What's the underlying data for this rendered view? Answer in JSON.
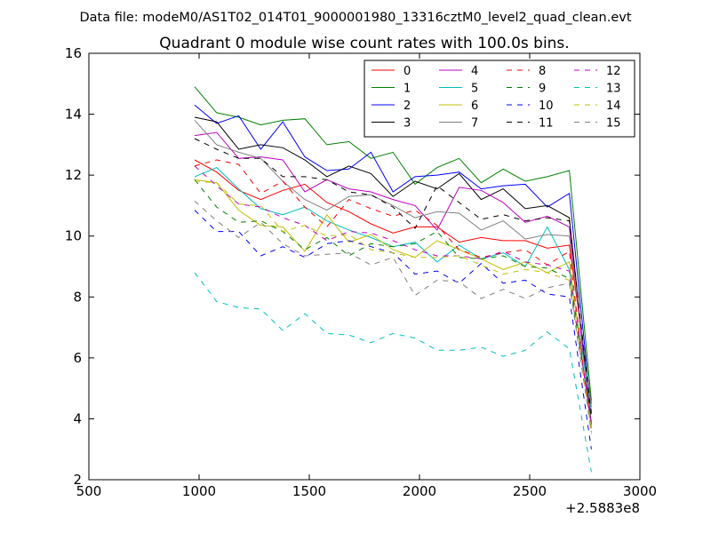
{
  "figure": {
    "suptitle": "Data file: modeM0/AS1T02_014T01_9000001980_13316cztM0_level2_quad_clean.evt"
  },
  "chart_data": {
    "type": "line",
    "title": "Quadrant 0 module wise count rates with 100.0s bins.",
    "xlabel": "",
    "ylabel": "",
    "xlim": [
      500,
      3000
    ],
    "ylim": [
      2,
      16
    ],
    "x_offset_label": "+2.5883e8",
    "xticks": [
      "500",
      "1000",
      "1500",
      "2000",
      "2500",
      "3000"
    ],
    "yticks": [
      "2",
      "4",
      "6",
      "8",
      "10",
      "12",
      "14",
      "16"
    ],
    "grid": false,
    "legend_position": "top-right",
    "legend_columns": 4,
    "x": [
      980,
      1080,
      1180,
      1280,
      1380,
      1480,
      1580,
      1680,
      1780,
      1880,
      1980,
      2080,
      2180,
      2280,
      2380,
      2480,
      2580,
      2680,
      2780
    ],
    "series": [
      {
        "name": "0",
        "color": "#ff0000",
        "dash": "solid",
        "values": [
          12.5,
          12.1,
          11.5,
          11.2,
          11.5,
          11.7,
          11.1,
          10.8,
          10.4,
          10.1,
          10.3,
          10.3,
          9.8,
          9.95,
          9.85,
          9.85,
          9.6,
          9.7,
          4.5
        ]
      },
      {
        "name": "1",
        "color": "#008000",
        "dash": "solid",
        "values": [
          14.9,
          14.05,
          13.9,
          13.65,
          13.8,
          13.85,
          13.0,
          13.1,
          12.55,
          12.75,
          11.7,
          12.25,
          12.55,
          11.75,
          12.2,
          11.8,
          11.95,
          12.15,
          4.6
        ]
      },
      {
        "name": "2",
        "color": "#0000ff",
        "dash": "solid",
        "values": [
          14.3,
          13.7,
          13.95,
          12.85,
          13.75,
          12.6,
          12.15,
          12.2,
          12.75,
          11.45,
          11.95,
          12.0,
          12.1,
          11.55,
          11.65,
          11.7,
          10.95,
          11.4,
          4.2
        ]
      },
      {
        "name": "3",
        "color": "#000000",
        "dash": "solid",
        "values": [
          13.9,
          13.75,
          12.85,
          13.0,
          12.9,
          12.5,
          11.95,
          12.3,
          12.05,
          11.3,
          11.8,
          11.55,
          12.05,
          11.2,
          11.55,
          10.9,
          11.0,
          10.6,
          3.8
        ]
      },
      {
        "name": "4",
        "color": "#bf00bf",
        "dash": "solid",
        "values": [
          13.3,
          13.4,
          12.55,
          12.6,
          12.5,
          11.45,
          11.85,
          11.55,
          11.45,
          11.2,
          11.0,
          10.2,
          11.6,
          11.5,
          11.1,
          10.45,
          10.65,
          10.3,
          3.7
        ]
      },
      {
        "name": "5",
        "color": "#00bfbf",
        "dash": "solid",
        "values": [
          11.95,
          12.25,
          11.55,
          10.9,
          10.7,
          10.95,
          10.5,
          10.2,
          9.95,
          9.65,
          9.8,
          9.15,
          9.7,
          9.25,
          9.45,
          9.0,
          10.3,
          8.9,
          4.3
        ]
      },
      {
        "name": "6",
        "color": "#bfbf00",
        "dash": "solid",
        "values": [
          11.85,
          11.75,
          10.85,
          10.35,
          10.3,
          9.5,
          10.7,
          9.8,
          10.05,
          9.55,
          9.3,
          9.85,
          9.55,
          9.25,
          8.9,
          9.15,
          8.8,
          9.15,
          3.7
        ]
      },
      {
        "name": "7",
        "color": "#808080",
        "dash": "solid",
        "values": [
          13.8,
          13.0,
          12.75,
          12.55,
          11.8,
          11.2,
          10.85,
          11.3,
          11.35,
          11.0,
          10.6,
          10.8,
          10.75,
          10.2,
          10.5,
          9.9,
          10.05,
          10.0,
          4.4
        ]
      },
      {
        "name": "8",
        "color": "#ff0000",
        "dash": "dashed",
        "values": [
          12.3,
          12.5,
          12.35,
          11.4,
          11.8,
          10.95,
          10.3,
          11.2,
          10.9,
          10.65,
          10.85,
          10.35,
          9.55,
          9.3,
          9.45,
          9.55,
          9.05,
          9.5,
          3.5
        ]
      },
      {
        "name": "9",
        "color": "#008000",
        "dash": "dashed",
        "values": [
          11.85,
          10.95,
          10.45,
          10.5,
          10.15,
          9.55,
          9.95,
          9.35,
          9.75,
          9.65,
          9.75,
          10.15,
          9.3,
          9.25,
          9.35,
          9.0,
          8.95,
          8.6,
          3.9
        ]
      },
      {
        "name": "10",
        "color": "#0000ff",
        "dash": "dashed",
        "values": [
          10.85,
          10.15,
          10.15,
          9.35,
          9.65,
          9.3,
          9.75,
          9.85,
          9.65,
          9.45,
          8.75,
          8.85,
          8.45,
          9.1,
          8.45,
          8.55,
          8.1,
          8.0,
          3.0
        ]
      },
      {
        "name": "11",
        "color": "#000000",
        "dash": "dashed",
        "values": [
          13.2,
          12.85,
          12.55,
          12.55,
          11.95,
          11.95,
          11.85,
          11.45,
          11.35,
          10.95,
          10.25,
          11.65,
          11.1,
          10.55,
          10.7,
          10.5,
          10.6,
          10.5,
          4.1
        ]
      },
      {
        "name": "12",
        "color": "#bf00bf",
        "dash": "dashed",
        "values": [
          12.3,
          11.65,
          11.05,
          10.95,
          10.6,
          10.35,
          9.85,
          10.15,
          10.1,
          9.85,
          9.55,
          9.35,
          9.35,
          9.25,
          9.5,
          9.15,
          9.05,
          8.85,
          3.8
        ]
      },
      {
        "name": "13",
        "color": "#00bfbf",
        "dash": "dashed",
        "values": [
          8.8,
          7.85,
          7.65,
          7.6,
          6.9,
          7.45,
          6.8,
          6.75,
          6.5,
          6.8,
          6.65,
          6.25,
          6.25,
          6.35,
          6.05,
          6.25,
          6.85,
          6.3,
          2.25
        ]
      },
      {
        "name": "14",
        "color": "#bfbf00",
        "dash": "dashed",
        "values": [
          11.8,
          11.75,
          11.05,
          11.0,
          10.15,
          10.35,
          10.0,
          10.05,
          9.55,
          9.45,
          9.3,
          9.3,
          9.35,
          9.05,
          8.75,
          8.9,
          8.8,
          8.55,
          3.6
        ]
      },
      {
        "name": "15",
        "color": "#808080",
        "dash": "dashed",
        "values": [
          11.15,
          10.5,
          9.95,
          10.45,
          9.75,
          9.35,
          9.4,
          9.45,
          9.05,
          9.3,
          8.05,
          8.55,
          8.5,
          7.95,
          8.25,
          7.95,
          8.3,
          8.45,
          3.55
        ]
      }
    ]
  }
}
